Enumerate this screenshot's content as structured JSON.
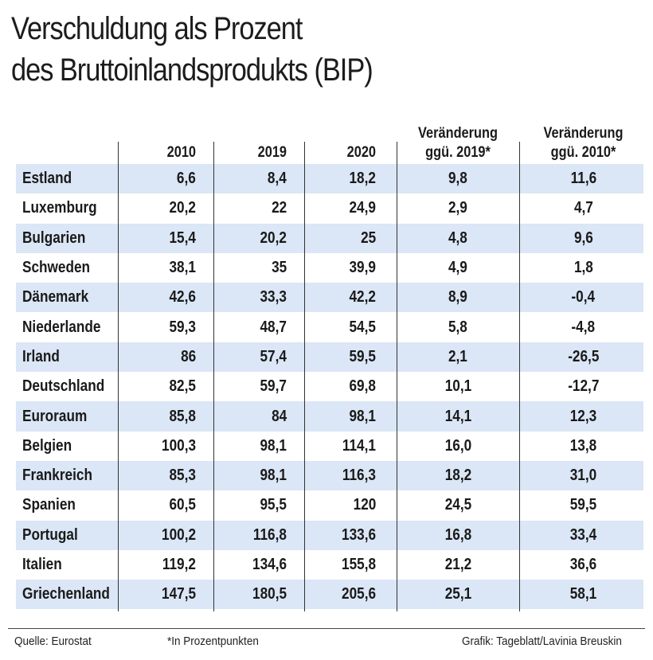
{
  "title_line1": "Verschuldung als Prozent",
  "title_line2": "des Bruttoinlandsprodukts (BIP)",
  "chart_data": {
    "type": "table",
    "columns": [
      "2010",
      "2019",
      "2020",
      "Veränderung ggü. 2019*",
      "Veränderung ggü. 2010*"
    ],
    "column_header_lines": [
      [
        "2010"
      ],
      [
        "2019"
      ],
      [
        "2020"
      ],
      [
        "Veränderung",
        "ggü. 2019*"
      ],
      [
        "Veränderung",
        "ggü. 2010*"
      ]
    ],
    "rows": [
      {
        "label": "Estland",
        "values": [
          "6,6",
          "8,4",
          "18,2",
          "9,8",
          "11,6"
        ]
      },
      {
        "label": "Luxemburg",
        "values": [
          "20,2",
          "22",
          "24,9",
          "2,9",
          "4,7"
        ]
      },
      {
        "label": "Bulgarien",
        "values": [
          "15,4",
          "20,2",
          "25",
          "4,8",
          "9,6"
        ]
      },
      {
        "label": "Schweden",
        "values": [
          "38,1",
          "35",
          "39,9",
          "4,9",
          "1,8"
        ]
      },
      {
        "label": "Dänemark",
        "values": [
          "42,6",
          "33,3",
          "42,2",
          "8,9",
          "-0,4"
        ]
      },
      {
        "label": "Niederlande",
        "values": [
          "59,3",
          "48,7",
          "54,5",
          "5,8",
          "-4,8"
        ]
      },
      {
        "label": "Irland",
        "values": [
          "86",
          "57,4",
          "59,5",
          "2,1",
          "-26,5"
        ]
      },
      {
        "label": "Deutschland",
        "values": [
          "82,5",
          "59,7",
          "69,8",
          "10,1",
          "-12,7"
        ]
      },
      {
        "label": "Euroraum",
        "values": [
          "85,8",
          "84",
          "98,1",
          "14,1",
          "12,3"
        ]
      },
      {
        "label": "Belgien",
        "values": [
          "100,3",
          "98,1",
          "114,1",
          "16,0",
          "13,8"
        ]
      },
      {
        "label": "Frankreich",
        "values": [
          "85,3",
          "98,1",
          "116,3",
          "18,2",
          "31,0"
        ]
      },
      {
        "label": "Spanien",
        "values": [
          "60,5",
          "95,5",
          "120",
          "24,5",
          "59,5"
        ]
      },
      {
        "label": "Portugal",
        "values": [
          "100,2",
          "116,8",
          "133,6",
          "16,8",
          "33,4"
        ]
      },
      {
        "label": "Italien",
        "values": [
          "119,2",
          "134,6",
          "155,8",
          "21,2",
          "36,6"
        ]
      },
      {
        "label": "Griechenland",
        "values": [
          "147,5",
          "180,5",
          "205,6",
          "25,1",
          "58,1"
        ]
      }
    ]
  },
  "footer": {
    "source": "Quelle: Eurostat",
    "note": "*In Prozentpunkten",
    "credit": "Grafik: Tageblatt/Lavinia Breuskin"
  },
  "colors": {
    "row_band": "#dbe6f6",
    "text": "#1a1a1a"
  }
}
